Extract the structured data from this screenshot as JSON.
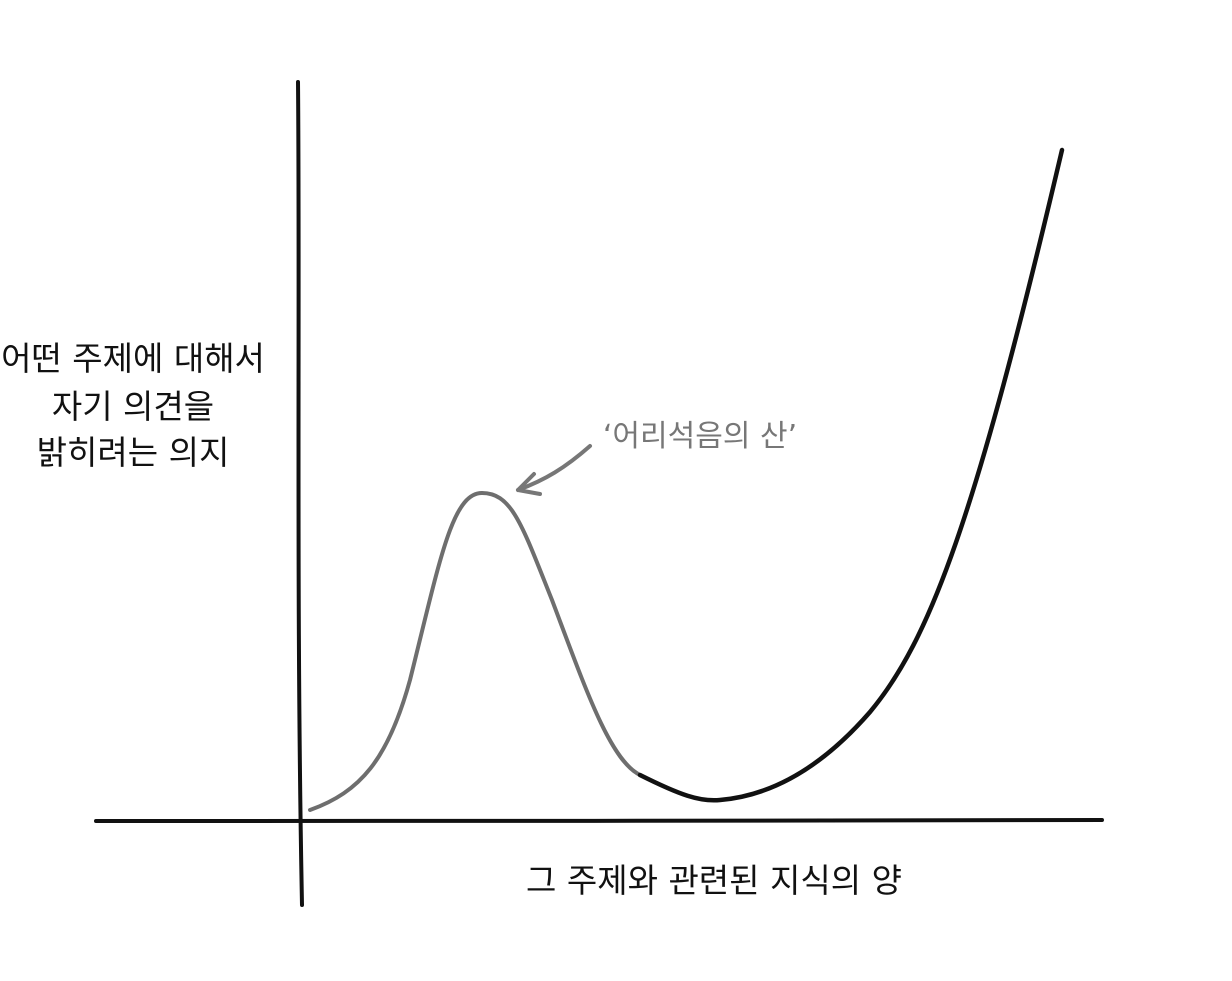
{
  "y_label": {
    "lines": [
      "어떤 주제에 대해서",
      "자기 의견을",
      "밝히려는 의지"
    ]
  },
  "annotation": "‘어리석음의 산’",
  "x_label": "그 주제와 관련된 지식의 양"
}
